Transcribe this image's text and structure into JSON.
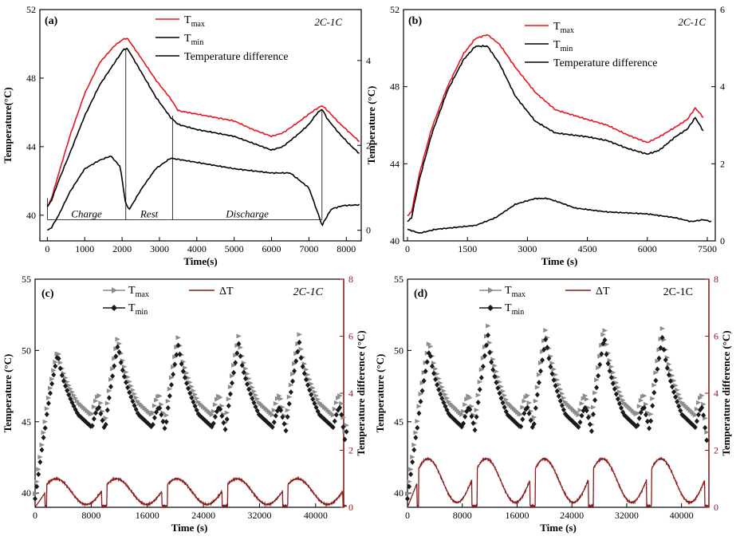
{
  "chart_data": [
    {
      "panel": "(a)",
      "type": "line",
      "condition": "2C-1C",
      "xlabel": "Time(s)",
      "ylabel": "Temperature(°C)",
      "xlim": [
        -200,
        8400
      ],
      "xticks": [
        0,
        1000,
        2000,
        3000,
        4000,
        5000,
        6000,
        7000,
        8000
      ],
      "ylim": [
        38.5,
        52
      ],
      "yticks": [
        40,
        44,
        48,
        52
      ],
      "y2lim": [
        -0.25,
        5.2
      ],
      "y2ticks": [
        0,
        2,
        4
      ],
      "legend": [
        "T_max",
        "T_min",
        "Temperature difference"
      ],
      "phases": [
        {
          "label": "Charge",
          "x": [
            0,
            2100
          ]
        },
        {
          "label": "Rest",
          "x": [
            2100,
            3350
          ]
        },
        {
          "label": "Discharge",
          "x": [
            3350,
            7350
          ]
        }
      ],
      "series": [
        {
          "name": "T_max",
          "axis": "left",
          "color": "#e8141e",
          "x": [
            0,
            100,
            300,
            600,
            1000,
            1400,
            1800,
            2050,
            2150,
            2500,
            2900,
            3300,
            3500,
            4000,
            5000,
            5500,
            6000,
            6300,
            6700,
            7000,
            7200,
            7350,
            7500,
            7800,
            8100,
            8350
          ],
          "y": [
            40.5,
            40.9,
            42.4,
            44.6,
            47.1,
            48.9,
            49.9,
            50.3,
            50.3,
            49.2,
            47.9,
            46.8,
            46.1,
            45.9,
            45.5,
            45.0,
            44.6,
            44.8,
            45.4,
            45.9,
            46.2,
            46.4,
            46.1,
            45.4,
            44.8,
            44.3
          ]
        },
        {
          "name": "T_min",
          "axis": "left",
          "color": "#000000",
          "x": [
            0,
            100,
            300,
            600,
            1000,
            1400,
            1800,
            2050,
            2150,
            2500,
            2900,
            3300,
            3500,
            4000,
            5000,
            5500,
            6000,
            6300,
            6700,
            7000,
            7200,
            7350,
            7500,
            7800,
            8100,
            8350
          ],
          "y": [
            40.5,
            40.8,
            42.0,
            43.6,
            45.8,
            47.6,
            48.9,
            49.7,
            49.7,
            48.4,
            46.9,
            45.7,
            45.3,
            45.0,
            44.6,
            44.2,
            43.8,
            44.0,
            44.7,
            45.3,
            45.9,
            46.2,
            45.6,
            44.8,
            44.1,
            43.6
          ]
        },
        {
          "name": "Temperature difference",
          "axis": "right",
          "color": "#000000",
          "x": [
            0,
            100,
            300,
            600,
            1000,
            1400,
            1700,
            1950,
            2100,
            2200,
            2500,
            2900,
            3300,
            4000,
            5000,
            6000,
            6500,
            7000,
            7300,
            7350,
            7400,
            7600,
            7900,
            8350
          ],
          "y": [
            0,
            0.05,
            0.35,
            0.9,
            1.45,
            1.65,
            1.75,
            1.5,
            0.6,
            0.5,
            0.95,
            1.45,
            1.7,
            1.6,
            1.45,
            1.35,
            1.35,
            1.0,
            0.25,
            0.1,
            0.2,
            0.5,
            0.58,
            0.6
          ]
        }
      ]
    },
    {
      "panel": "(b)",
      "type": "line",
      "condition": "2C-1C",
      "xlabel": "Time (s)",
      "ylabel": "Temperature (°C)",
      "xlim": [
        -100,
        7700
      ],
      "xticks": [
        0,
        1500,
        3000,
        4500,
        6000,
        7500
      ],
      "ylim": [
        40,
        52
      ],
      "yticks": [
        40,
        44,
        48,
        52
      ],
      "y2lim": [
        0,
        6
      ],
      "y2ticks": [
        0,
        2,
        4,
        6
      ],
      "legend": [
        "T_max",
        "T_min",
        "Temperature difference"
      ],
      "series": [
        {
          "name": "T_max",
          "axis": "left",
          "color": "#e8141e",
          "x": [
            0,
            100,
            300,
            600,
            1000,
            1400,
            1700,
            2000,
            2300,
            2700,
            3200,
            3700,
            4500,
            5000,
            5500,
            6000,
            6300,
            6700,
            7000,
            7200,
            7400
          ],
          "y": [
            41.3,
            41.5,
            43.5,
            45.8,
            48.0,
            49.7,
            50.5,
            50.7,
            50.2,
            49.0,
            47.7,
            46.8,
            46.3,
            46.0,
            45.5,
            45.1,
            45.4,
            45.9,
            46.3,
            46.9,
            46.4
          ]
        },
        {
          "name": "T_min",
          "axis": "left",
          "color": "#000000",
          "x": [
            0,
            100,
            300,
            600,
            1000,
            1400,
            1700,
            2000,
            2300,
            2700,
            3200,
            3700,
            4500,
            5000,
            5500,
            6000,
            6300,
            6700,
            7000,
            7200,
            7400
          ],
          "y": [
            41.0,
            41.2,
            43.2,
            45.5,
            47.8,
            49.4,
            50.1,
            50.1,
            49.2,
            47.5,
            46.2,
            45.6,
            45.4,
            45.2,
            44.8,
            44.5,
            44.7,
            45.4,
            45.8,
            46.4,
            45.7
          ]
        },
        {
          "name": "Temperature difference",
          "axis": "right",
          "color": "#000000",
          "x": [
            0,
            300,
            700,
            1200,
            1700,
            2200,
            2700,
            3200,
            3500,
            3800,
            4200,
            5000,
            6000,
            6700,
            7100,
            7400,
            7600
          ],
          "y": [
            0.3,
            0.2,
            0.3,
            0.35,
            0.4,
            0.6,
            0.95,
            1.1,
            1.1,
            1.0,
            0.85,
            0.75,
            0.7,
            0.6,
            0.5,
            0.55,
            0.5
          ]
        }
      ]
    },
    {
      "panel": "(c)",
      "type": "scatter",
      "condition": "2C-1C",
      "xlabel": "Time (s)",
      "ylabel": "Temperature (°C)",
      "y2label": "Temperature difference (°C)",
      "xlim": [
        0,
        44000
      ],
      "xticks": [
        0,
        8000,
        16000,
        24000,
        32000,
        40000
      ],
      "ylim": [
        39,
        55
      ],
      "yticks": [
        40,
        45,
        50,
        55
      ],
      "y2lim": [
        0,
        8
      ],
      "y2ticks": [
        0,
        2,
        4,
        6,
        8
      ],
      "legend": [
        "T_max",
        "ΔT",
        "T_min"
      ],
      "cycle_period": 8600,
      "cycles": 5,
      "series": [
        {
          "name": "T_max",
          "axis": "left",
          "color": "#8c8c8c",
          "peak": 51.0,
          "peak0": 50.0
        },
        {
          "name": "T_min",
          "axis": "left",
          "color": "#1a1a1a",
          "peak": 50.6,
          "peak0": 49.9
        },
        {
          "name": "ΔT",
          "axis": "right",
          "color": "#8b1a1a",
          "max": 1.0
        }
      ]
    },
    {
      "panel": "(d)",
      "type": "scatter",
      "condition": "2C-1C",
      "xlabel": "Time (s)",
      "ylabel": "Temperature (°C)",
      "y2label": "Temperature difference (°C)",
      "xlim": [
        0,
        44000
      ],
      "xticks": [
        0,
        8000,
        16000,
        24000,
        32000,
        40000
      ],
      "ylim": [
        39,
        55
      ],
      "yticks": [
        40,
        45,
        50,
        55
      ],
      "y2lim": [
        0,
        8
      ],
      "y2ticks": [
        0,
        2,
        4,
        6,
        8
      ],
      "legend": [
        "T_max",
        "ΔT",
        "T_min"
      ],
      "cycle_period": 8500,
      "cycles": 5,
      "series": [
        {
          "name": "T_max",
          "axis": "left",
          "color": "#8c8c8c",
          "peak": 51.6,
          "peak0": 50.7
        },
        {
          "name": "T_min",
          "axis": "left",
          "color": "#1a1a1a",
          "peak": 51.1,
          "peak0": 50.2
        },
        {
          "name": "ΔT",
          "axis": "right",
          "color": "#8b1a1a",
          "max": 1.7
        }
      ]
    }
  ]
}
